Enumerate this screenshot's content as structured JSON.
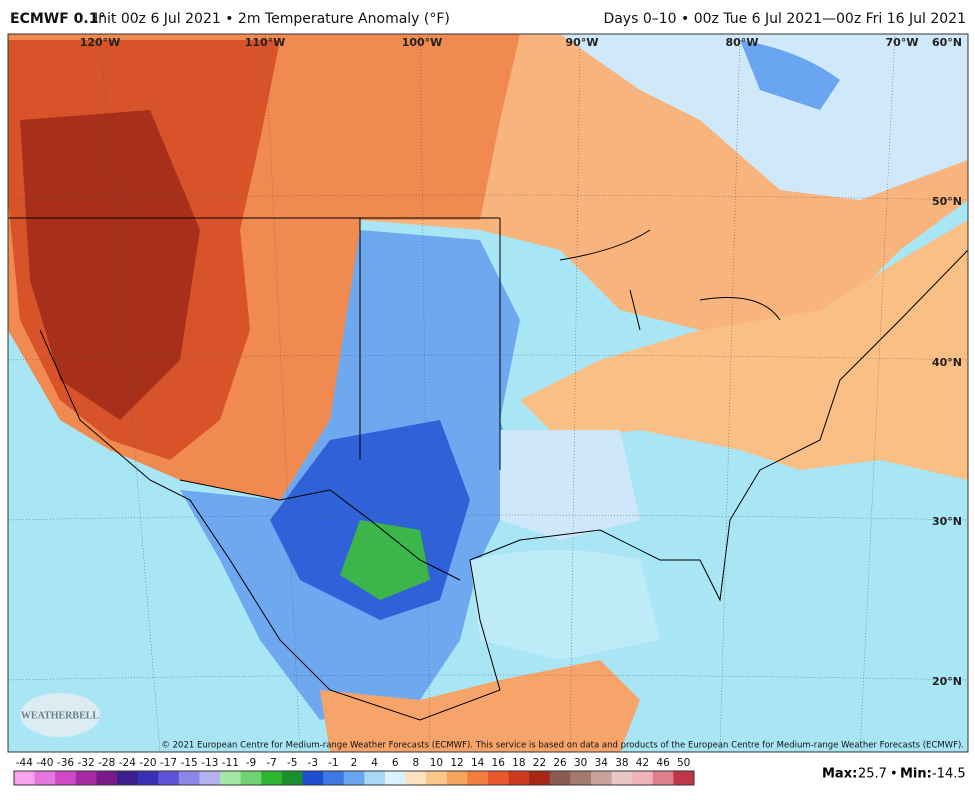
{
  "header": {
    "title_bold": "ECMWF 0.1°",
    "title_rest": "Init 00z 6 Jul 2021 • 2m Temperature Anomaly (°F)",
    "period": "Days 0–10 • 00z Tue 6 Jul 2021—00z Fri 16 Jul 2021"
  },
  "map": {
    "lon_labels": [
      "120°W",
      "110°W",
      "100°W",
      "90°W",
      "80°W",
      "70°W"
    ],
    "lat_labels": [
      "60°N",
      "50°N",
      "40°N",
      "30°N",
      "20°N"
    ],
    "logo": "WEATHERBELL",
    "copyright": "© 2021 European Centre for Medium-range Weather Forecasts (ECMWF). This service is based on data and products of the European Centre for Medium-range Weather Forecasts (ECMWF)."
  },
  "colorbar": {
    "ticks": [
      -44,
      -40,
      -36,
      -32,
      -28,
      -24,
      -20,
      -17,
      -15,
      -13,
      -11,
      -9,
      -7,
      -5,
      -3,
      -1,
      2,
      4,
      6,
      8,
      10,
      12,
      14,
      16,
      18,
      22,
      26,
      30,
      34,
      38,
      42,
      46,
      50
    ],
    "colors": [
      "#f7a3f0",
      "#e676df",
      "#cf48c8",
      "#a72aa5",
      "#7a1a8a",
      "#3c1f8f",
      "#3a2fb8",
      "#5d52d8",
      "#8b86e8",
      "#b5b2f2",
      "#a5e8a5",
      "#6fd46f",
      "#2fb52f",
      "#1a8f2e",
      "#1f4fd0",
      "#3d78e6",
      "#6aa5f2",
      "#a9d8f7",
      "#d9f2fb",
      "#fde2c0",
      "#fbc78b",
      "#f8a45e",
      "#f37f3f",
      "#e8582c",
      "#cf3a1f",
      "#a82615",
      "#8a5b50",
      "#a47a70",
      "#c9a39c",
      "#e8c7c4",
      "#f0b3b8",
      "#e07f8a",
      "#c0354b"
    ]
  },
  "stats": {
    "max_label": "Max:",
    "max": 25.7,
    "separator": "•",
    "min_label": "Min:",
    "min": -14.5
  }
}
